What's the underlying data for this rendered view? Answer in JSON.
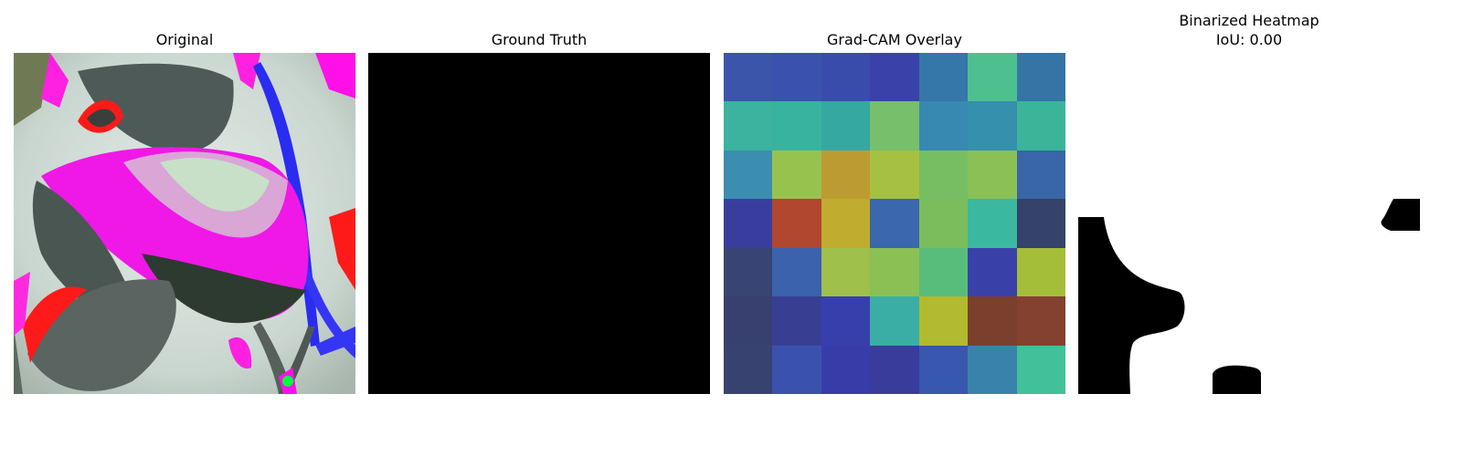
{
  "panels": [
    {
      "title": "Original"
    },
    {
      "title": "Ground Truth"
    },
    {
      "title": "Grad-CAM Overlay"
    },
    {
      "title": "Binarized Heatmap\nIoU: 0.00"
    }
  ],
  "heatmap_colors": [
    [
      "#3b55ab",
      "#3a52ad",
      "#394cab",
      "#3a42a9",
      "#3577a8",
      "#4ec08f",
      "#3674a6"
    ],
    [
      "#3bb39e",
      "#38b39f",
      "#35a8a2",
      "#78bf6b",
      "#3889b1",
      "#3590ad",
      "#3ab59a"
    ],
    [
      "#3b8eaf",
      "#98c24e",
      "#bc9c32",
      "#a6c042",
      "#77be62",
      "#8ac056",
      "#3966a8"
    ],
    [
      "#393e9e",
      "#b1472f",
      "#c0ad2f",
      "#3a67ad",
      "#7bbd5d",
      "#3bb8a0",
      "#354269"
    ],
    [
      "#384473",
      "#3a62ad",
      "#9fc04b",
      "#8bc055",
      "#58bd7b",
      "#3941a8",
      "#a5be3a"
    ],
    [
      "#384070",
      "#383f92",
      "#373fac",
      "#3aaea5",
      "#b2ba30",
      "#7a3f2d",
      "#85412f"
    ],
    [
      "#384270",
      "#3a52ae",
      "#383ca9",
      "#3a3c9c",
      "#3857ae",
      "#3783ab",
      "#42c09a"
    ]
  ]
}
